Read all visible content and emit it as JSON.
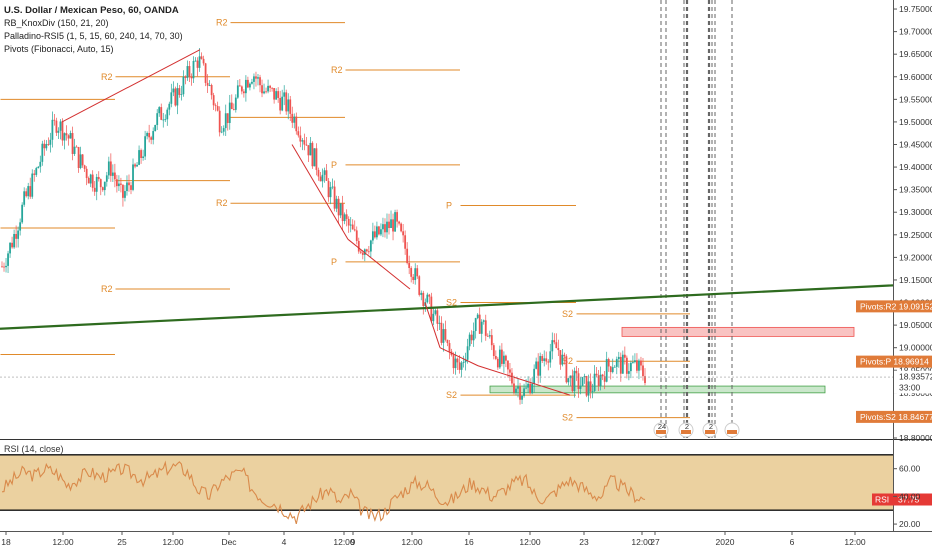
{
  "legend": {
    "title": "U.S. Dollar / Mexican Peso, 60, OANDA",
    "indicators": [
      "RB_KnoxDiv (150, 21, 20)",
      "Palladino-RSI5 (1, 5, 15, 60, 240, 14, 70, 30)",
      "Pivots (Fibonacci, Auto, 15)"
    ]
  },
  "rsi_legend": "RSI (14, close)",
  "colors": {
    "candle_up": "#26a69a",
    "candle_down": "#ef5350",
    "pivot": "#e08a2a",
    "trendline": "#2e6b1f",
    "divergence": "#d32f2f",
    "rsi_line": "#d98a4b",
    "rsi_band": "#e8c98f",
    "badge": "#e07b39",
    "rsi_badge": "#e53935"
  },
  "chart_data": {
    "type": "candlestick",
    "title": "U.S. Dollar / Mexican Peso, 60, OANDA",
    "ylim": [
      18.8,
      19.77
    ],
    "price_ticks": [
      "19.75000",
      "19.70000",
      "19.65000",
      "19.60000",
      "19.55000",
      "19.50000",
      "19.45000",
      "19.40000",
      "19.35000",
      "19.30000",
      "19.25000",
      "19.20000",
      "19.15000",
      "19.10000",
      "19.05000",
      "19.00000",
      "18.95000",
      "18.90000",
      "18.85000",
      "18.80000"
    ],
    "time_ticks": [
      "18",
      "12:00",
      "25",
      "12:00",
      "Dec",
      "4",
      "12:00",
      "9",
      "12:00",
      "16",
      "12:00",
      "23",
      "12:00",
      "27",
      "2020",
      "6",
      "12:00"
    ],
    "rsi_ticks": [
      "60.00",
      "40.00",
      "20.00"
    ],
    "rsi_ylim": [
      15,
      80
    ],
    "rsi_band": [
      30,
      70
    ],
    "price_labels": [
      {
        "label": "Pivots:R2",
        "value": "19.09152",
        "price": 19.09152
      },
      {
        "label": "Pivots:P",
        "value": "18.96914",
        "price": 18.96914
      },
      {
        "label": "",
        "value": "18.93572",
        "price": 18.93572
      },
      {
        "label": "",
        "value": "33:00",
        "price": 18.912
      },
      {
        "label": "Pivots:S2",
        "value": "18.84677",
        "price": 18.84677
      }
    ],
    "rsi_label": {
      "label": "RSI",
      "value": "37.75",
      "level": 37.75
    },
    "pivot_labels": [
      "R2",
      "R2",
      "R2",
      "R2",
      "R2",
      "P",
      "P",
      "P",
      "S2",
      "S2",
      "S2",
      "S2",
      "S2"
    ],
    "event_badges": [
      "24",
      "2",
      "2",
      ""
    ],
    "price_path": [
      19.18,
      19.24,
      19.32,
      19.38,
      19.45,
      19.5,
      19.47,
      19.42,
      19.38,
      19.36,
      19.4,
      19.33,
      19.38,
      19.44,
      19.5,
      19.53,
      19.56,
      19.6,
      19.64,
      19.58,
      19.5,
      19.52,
      19.58,
      19.61,
      19.57,
      19.56,
      19.54,
      19.5,
      19.45,
      19.4,
      19.35,
      19.3,
      19.26,
      19.22,
      19.24,
      19.26,
      19.28,
      19.22,
      19.15,
      19.1,
      19.05,
      18.99,
      18.95,
      19.03,
      19.06,
      19.0,
      18.96,
      18.92,
      18.9,
      18.95,
      18.99,
      19.0,
      18.93,
      18.92,
      18.91,
      18.94,
      18.97,
      18.96,
      18.96,
      18.94
    ],
    "rsi_path": [
      45,
      52,
      58,
      55,
      60,
      57,
      48,
      53,
      58,
      54,
      56,
      60,
      56,
      52,
      55,
      60,
      62,
      58,
      45,
      40,
      50,
      55,
      58,
      45,
      38,
      35,
      30,
      25,
      33,
      40,
      45,
      35,
      42,
      30,
      25,
      28,
      38,
      45,
      50,
      48,
      40,
      36,
      42,
      50,
      46,
      40,
      44,
      50,
      52,
      40,
      38,
      45,
      52,
      48,
      42,
      40,
      52,
      46,
      41,
      37.75
    ]
  }
}
